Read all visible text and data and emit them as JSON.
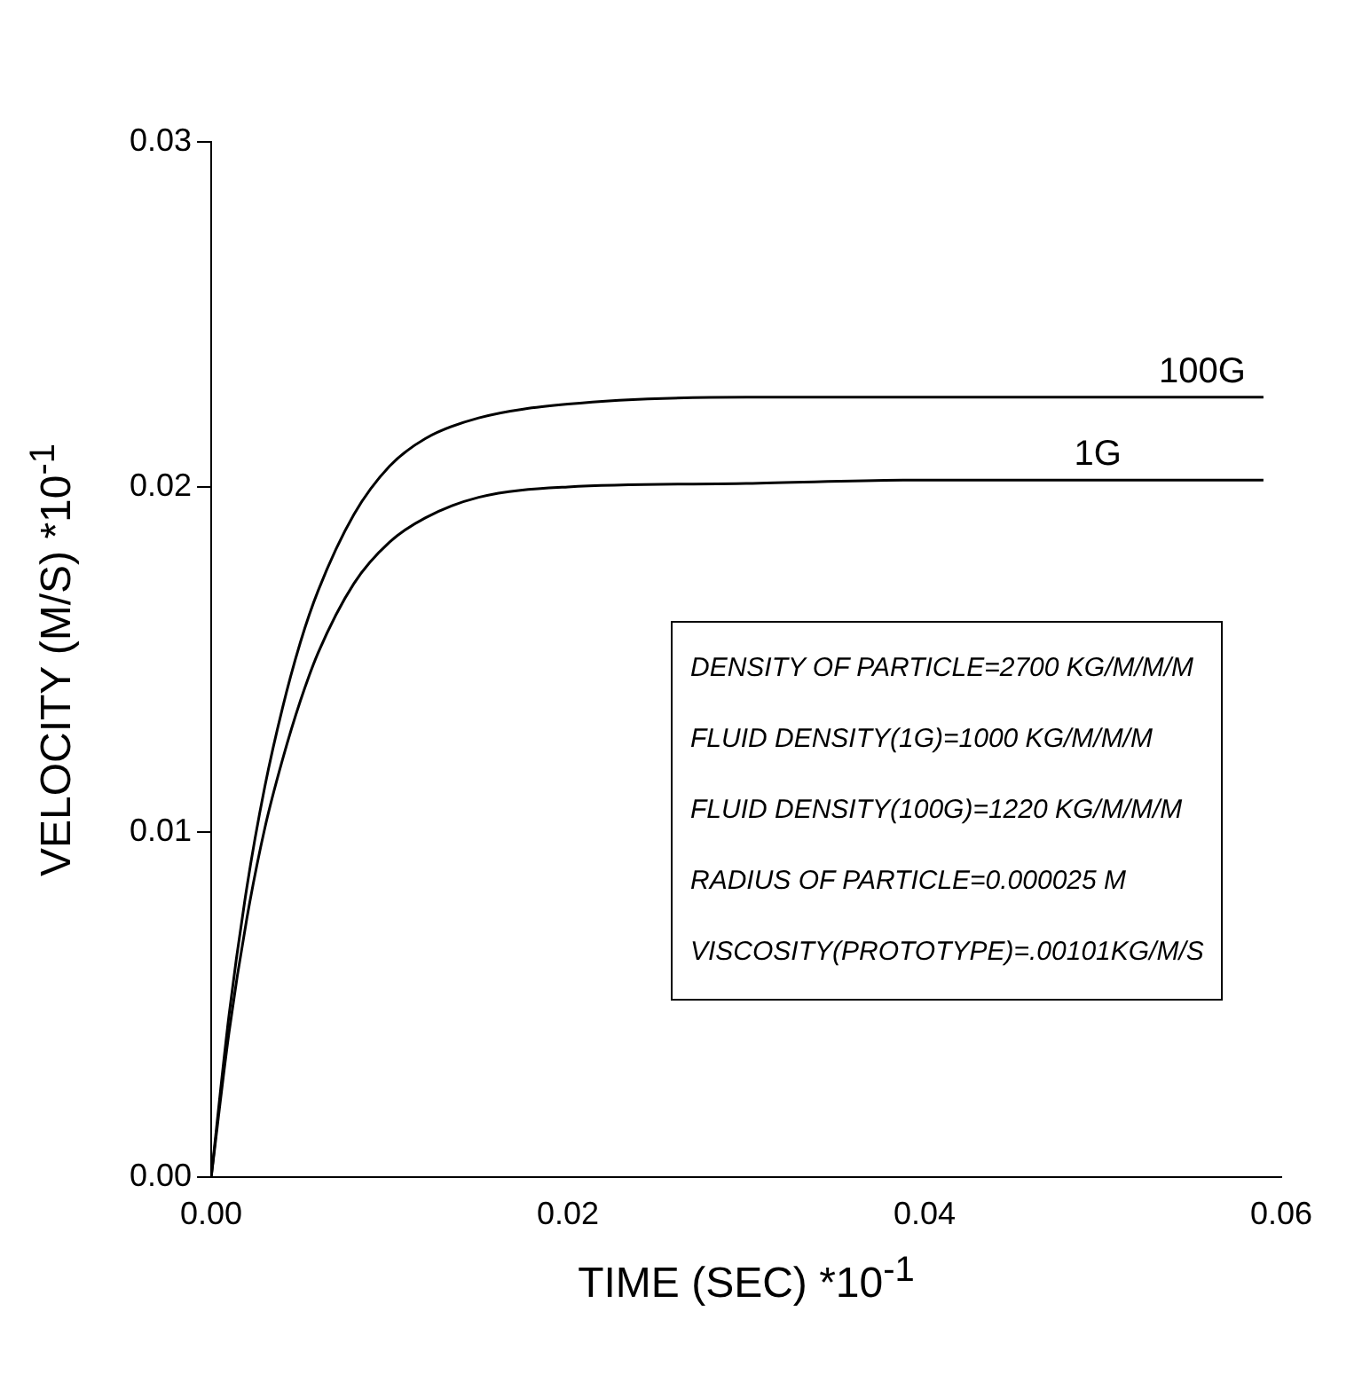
{
  "chart_data": {
    "type": "line",
    "xlabel": "TIME (SEC) *10$^{-1}$",
    "ylabel": "VELOCITY (M/S)  *10$^{-1}$",
    "x": [
      0,
      0.001,
      0.002,
      0.003,
      0.004,
      0.005,
      0.006,
      0.008,
      0.01,
      0.012,
      0.015,
      0.02,
      0.03,
      0.04,
      0.05,
      0.059
    ],
    "series": [
      {
        "name": "100G",
        "color": "#000000",
        "values": [
          0,
          0.0047,
          0.0084,
          0.0113,
          0.0136,
          0.0155,
          0.017,
          0.0192,
          0.0206,
          0.0214,
          0.022,
          0.0224,
          0.0226,
          0.0226,
          0.0226,
          0.0226
        ]
      },
      {
        "name": "1G",
        "color": "#000000",
        "values": [
          0,
          0.0042,
          0.0075,
          0.0101,
          0.0121,
          0.0138,
          0.0152,
          0.0172,
          0.0184,
          0.0191,
          0.0197,
          0.02,
          0.0201,
          0.0202,
          0.0202,
          0.0202
        ]
      }
    ],
    "xlim": [
      0,
      0.06
    ],
    "xticks": [
      {
        "value": 0,
        "label": "0.00"
      },
      {
        "value": 0.02,
        "label": "0.02"
      },
      {
        "value": 0.04,
        "label": "0.04"
      },
      {
        "value": 0.06,
        "label": "0.06"
      }
    ],
    "ylim": [
      0,
      0.03
    ],
    "yticks": [
      {
        "value": 0,
        "label": "0.00"
      },
      {
        "value": 0.01,
        "label": "0.01"
      },
      {
        "value": 0.02,
        "label": "0.02"
      },
      {
        "value": 0.03,
        "label": "0.03"
      }
    ],
    "grid": false,
    "legend": false,
    "marker": "none",
    "line_style": "solid",
    "annotations": [
      "DENSITY OF PARTICLE=2700 KG/M/M/M",
      "FLUID DENSITY(1G)=1000 KG/M/M/M",
      "FLUID DENSITY(100G)=1220 KG/M/M/M",
      "RADIUS OF PARTICLE=0.000025 M",
      "VISCOSITY(PROTOTYPE)=.00101KG/M/S"
    ]
  }
}
